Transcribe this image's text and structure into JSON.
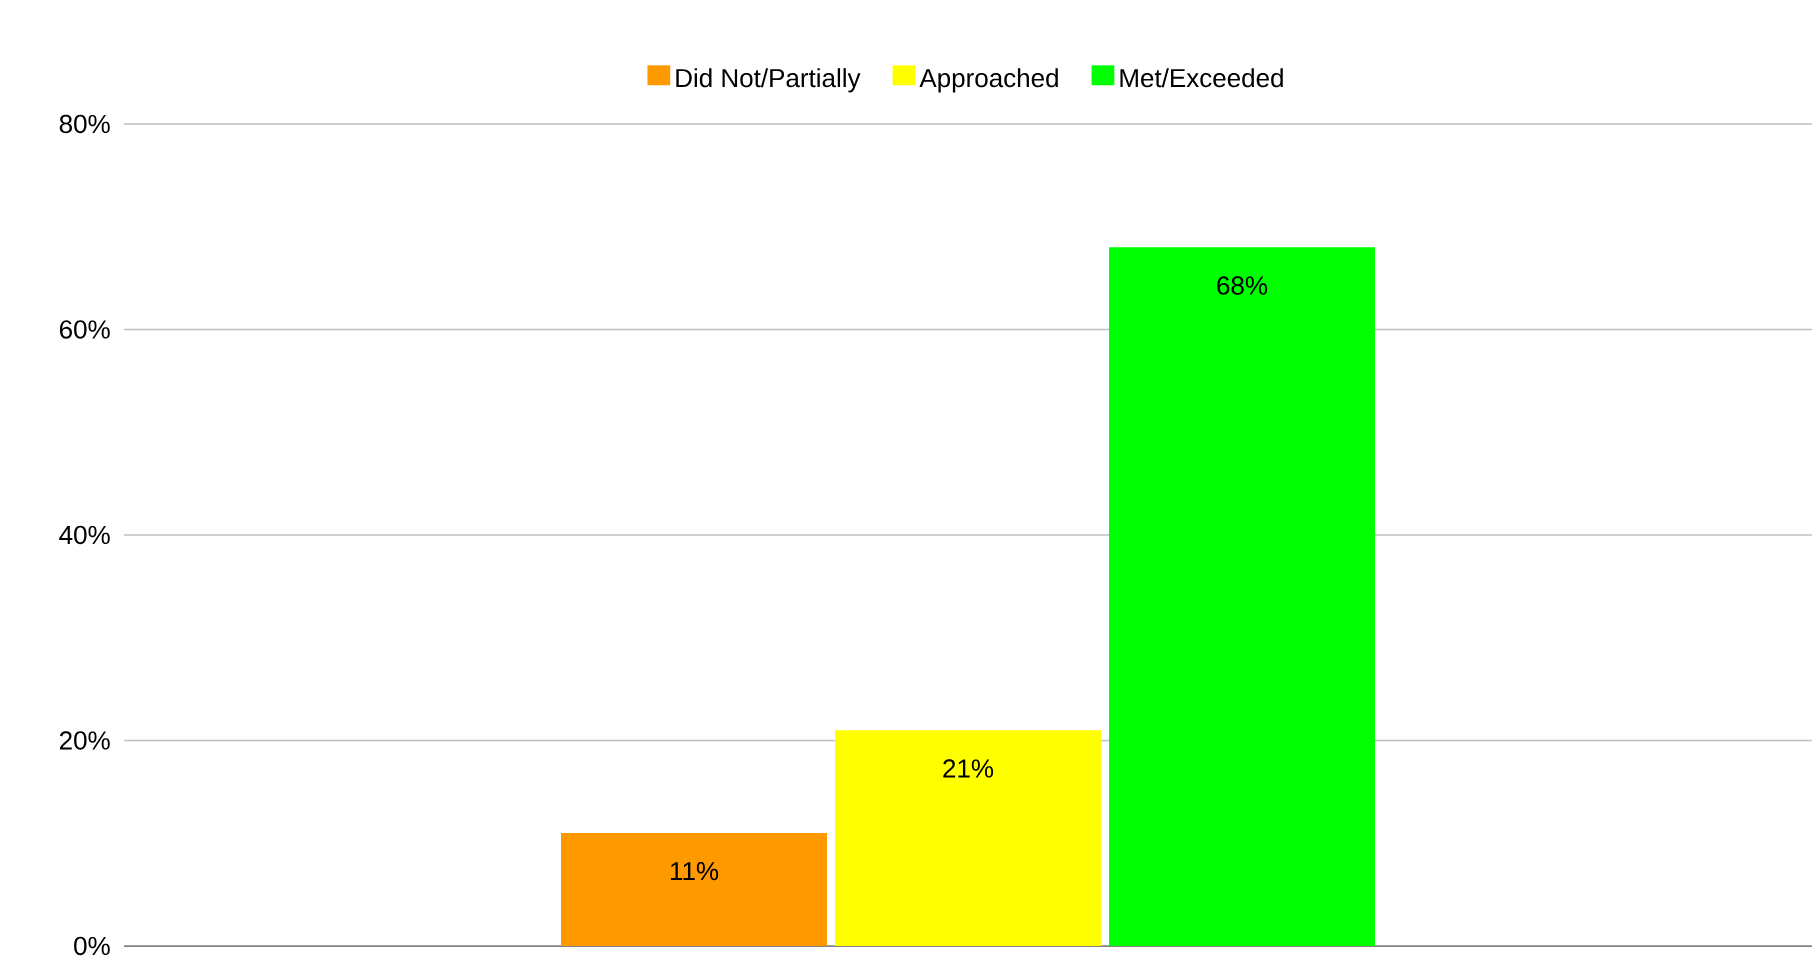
{
  "chart_data": {
    "type": "bar",
    "categories": [
      null
    ],
    "series": [
      {
        "name": "Did Not/Partially",
        "color": "#ff9900",
        "values": [
          11
        ],
        "value_labels": [
          "11%"
        ]
      },
      {
        "name": "Approached",
        "color": "#ffff00",
        "values": [
          21
        ],
        "value_labels": [
          "21%"
        ]
      },
      {
        "name": "Met/Exceeded",
        "color": "#00ff00",
        "values": [
          68
        ],
        "value_labels": [
          "68%"
        ]
      }
    ],
    "ylim": [
      0,
      80
    ],
    "yticks": [
      {
        "value": 0,
        "label": "0%"
      },
      {
        "value": 20,
        "label": "20%"
      },
      {
        "value": 40,
        "label": "40%"
      },
      {
        "value": 60,
        "label": "60%"
      },
      {
        "value": 80,
        "label": "80%"
      }
    ],
    "grid": "y",
    "legend": "top",
    "tick_labels": "y"
  }
}
